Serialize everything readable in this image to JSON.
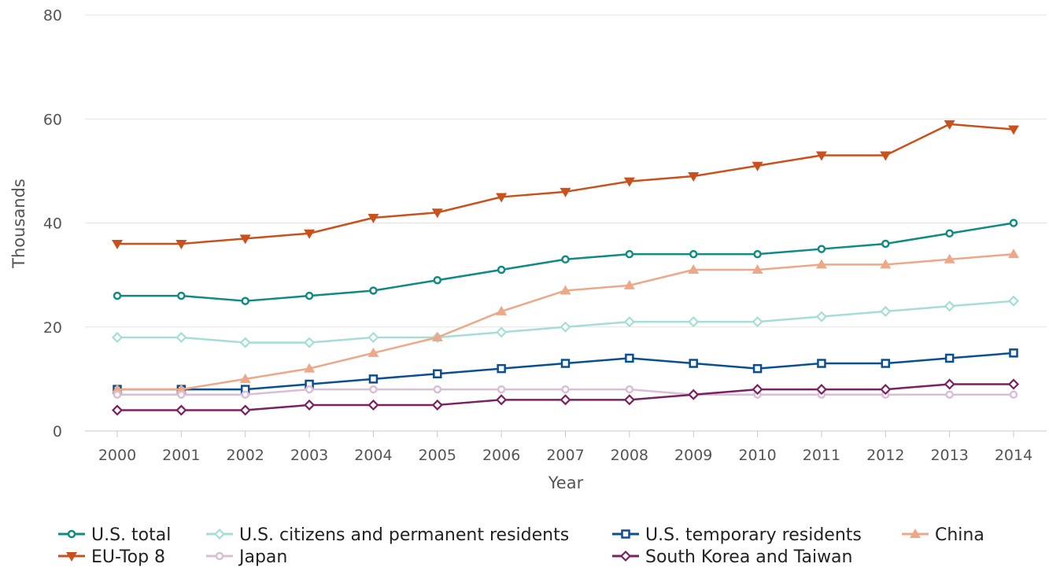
{
  "chart_data": {
    "type": "line",
    "title": "",
    "xlabel": "Year",
    "ylabel": "Thousands",
    "categories": [
      "2000",
      "2001",
      "2002",
      "2003",
      "2004",
      "2005",
      "2006",
      "2007",
      "2008",
      "2009",
      "2010",
      "2011",
      "2012",
      "2013",
      "2014"
    ],
    "ylim": [
      0,
      80
    ],
    "yticks": [
      0,
      20,
      40,
      60,
      80
    ],
    "grid": true,
    "legend_position": "bottom",
    "series": [
      {
        "name": "U.S. total",
        "color": "#108a82",
        "marker": "open-circle",
        "values": [
          26,
          26,
          25,
          26,
          27,
          29,
          31,
          33,
          34,
          34,
          34,
          35,
          36,
          38,
          40
        ]
      },
      {
        "name": "U.S. citizens and permanent residents",
        "color": "#a6ddd6",
        "marker": "open-diamond",
        "values": [
          18,
          18,
          17,
          17,
          18,
          18,
          19,
          20,
          21,
          21,
          21,
          22,
          23,
          24,
          25
        ]
      },
      {
        "name": "U.S. temporary residents",
        "color": "#0b4f91",
        "marker": "open-square",
        "values": [
          8,
          8,
          8,
          9,
          10,
          11,
          12,
          13,
          14,
          13,
          12,
          13,
          13,
          14,
          15
        ]
      },
      {
        "name": "China",
        "color": "#eda88a",
        "marker": "triangle-up",
        "values": [
          8,
          8,
          10,
          12,
          15,
          18,
          23,
          27,
          28,
          31,
          31,
          32,
          32,
          33,
          34
        ]
      },
      {
        "name": "EU-Top 8",
        "color": "#c9511d",
        "marker": "triangle-down",
        "values": [
          36,
          36,
          37,
          38,
          41,
          42,
          45,
          46,
          48,
          49,
          51,
          53,
          53,
          59,
          58
        ]
      },
      {
        "name": "Japan",
        "color": "#d8bfd6",
        "marker": "open-circle",
        "values": [
          7,
          7,
          7,
          8,
          8,
          8,
          8,
          8,
          8,
          7,
          7,
          7,
          7,
          7,
          7
        ]
      },
      {
        "name": "South Korea and Taiwan",
        "color": "#7b2060",
        "marker": "open-diamond",
        "values": [
          4,
          4,
          4,
          5,
          5,
          5,
          6,
          6,
          6,
          7,
          8,
          8,
          8,
          9,
          9
        ]
      }
    ]
  }
}
